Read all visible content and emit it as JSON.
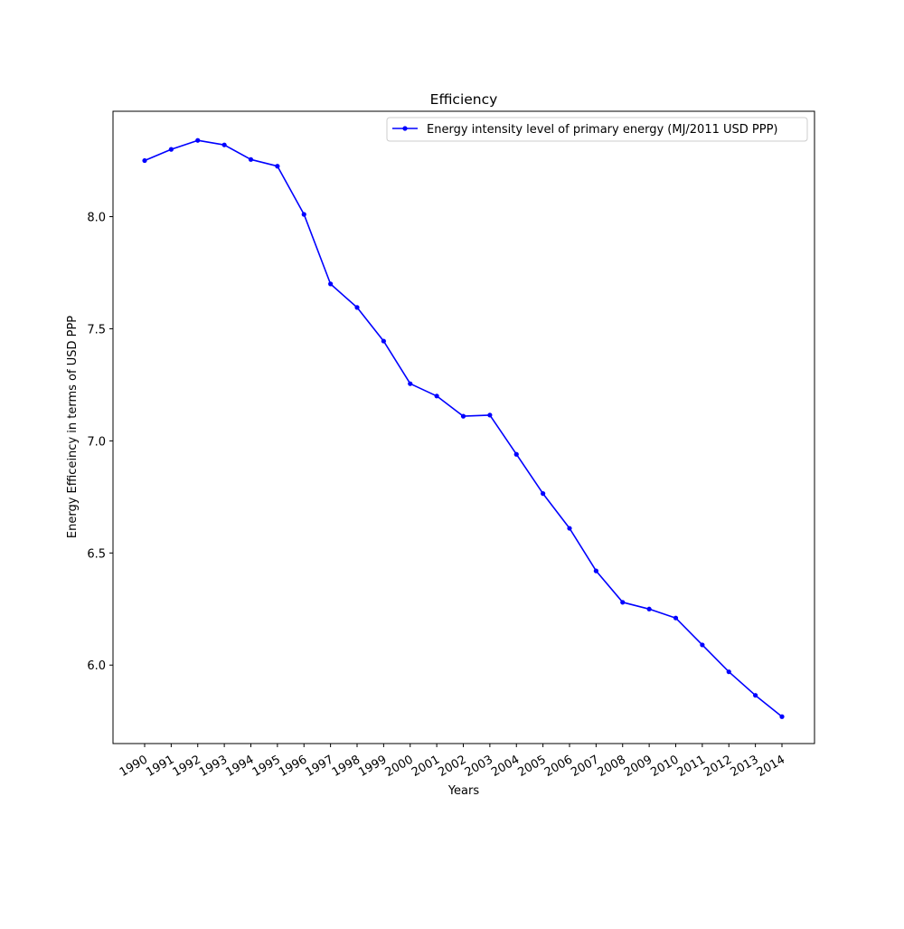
{
  "chart_data": {
    "type": "line",
    "title": "Efficiency",
    "xlabel": "Years",
    "ylabel": "Energy Efficeincy in terms of USD PPP",
    "categories": [
      "1990",
      "1991",
      "1992",
      "1993",
      "1994",
      "1995",
      "1996",
      "1997",
      "1998",
      "1999",
      "2000",
      "2001",
      "2002",
      "2003",
      "2004",
      "2005",
      "2006",
      "2007",
      "2008",
      "2009",
      "2010",
      "2011",
      "2012",
      "2013",
      "2014"
    ],
    "series": [
      {
        "name": "Energy intensity level of primary energy (MJ/2011 USD PPP)",
        "color": "#0000ff",
        "marker": "dot",
        "values": [
          8.25,
          8.3,
          8.34,
          8.32,
          8.255,
          8.225,
          8.01,
          7.7,
          7.595,
          7.445,
          7.255,
          7.2,
          7.11,
          7.115,
          6.94,
          6.765,
          6.61,
          6.42,
          6.28,
          6.25,
          6.21,
          6.09,
          5.97,
          5.865,
          5.77
        ]
      }
    ],
    "ylim": [
      5.65,
      8.47
    ],
    "yticks": [
      6.0,
      6.5,
      7.0,
      7.5,
      8.0
    ],
    "ytick_labels": [
      "6.0",
      "6.5",
      "7.0",
      "7.5",
      "8.0"
    ],
    "grid": false,
    "legend_position": "top-right"
  }
}
